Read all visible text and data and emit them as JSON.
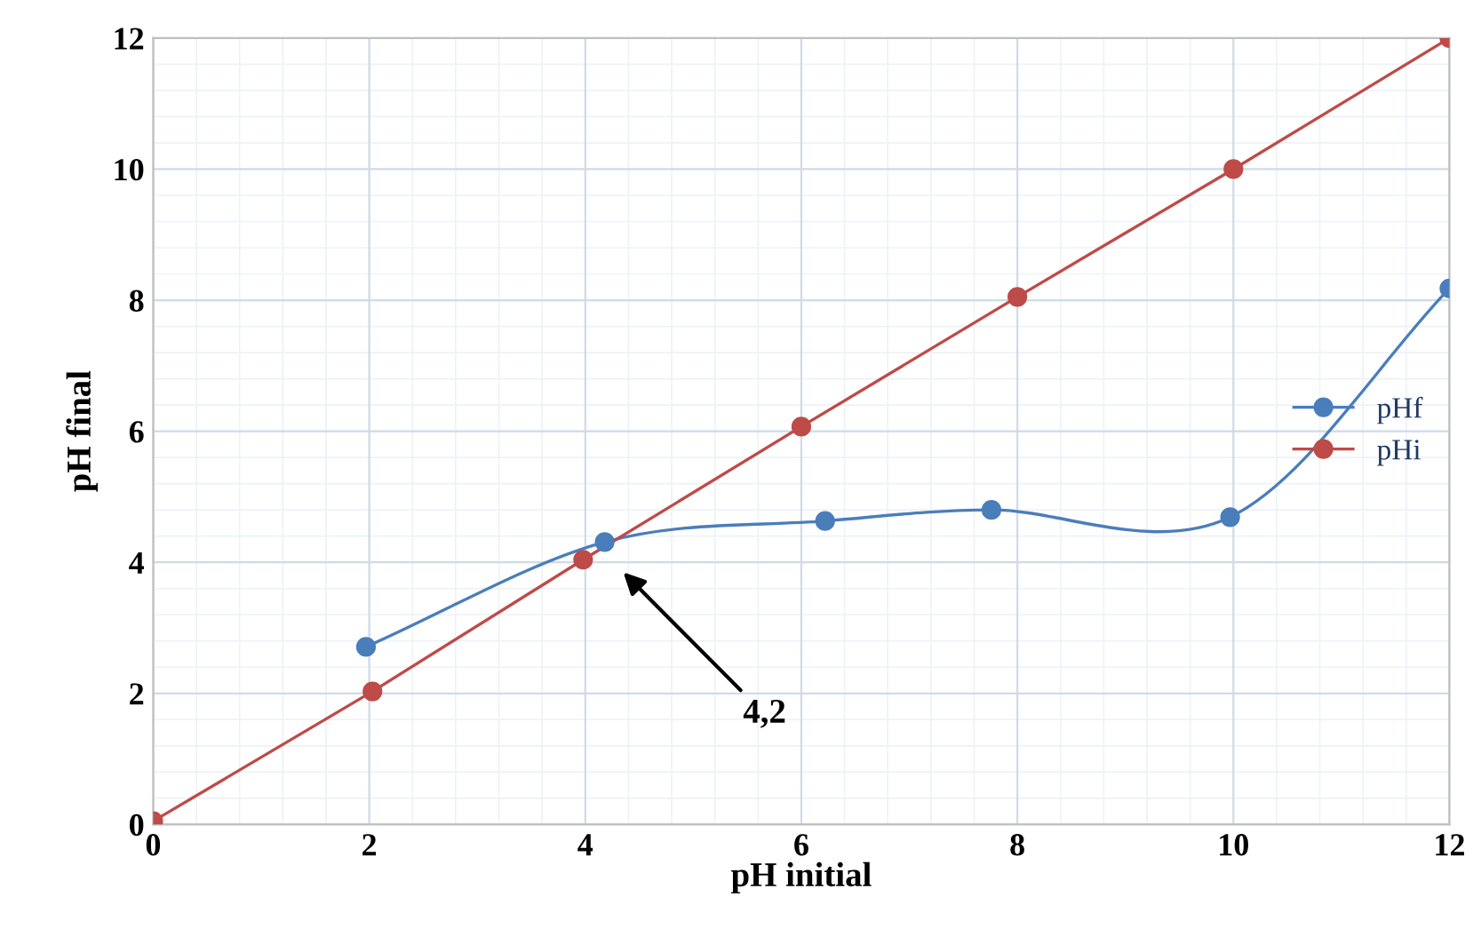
{
  "chart_data": {
    "type": "line",
    "xlabel": "pH initial",
    "ylabel": "pH final",
    "xlim": [
      0,
      12
    ],
    "ylim": [
      0,
      12
    ],
    "xticks": [
      0,
      2,
      4,
      6,
      8,
      10,
      12
    ],
    "yticks": [
      0,
      2,
      4,
      6,
      8,
      10,
      12
    ],
    "grid": true,
    "legend": "center right",
    "marker": "circle",
    "line_style": "solid",
    "series": [
      {
        "name": "pHf",
        "color": "#4a7ebb",
        "x": [
          1.97,
          4.18,
          6.22,
          7.76,
          9.97,
          12
        ],
        "values": [
          2.71,
          4.31,
          4.63,
          4.8,
          4.69,
          8.18
        ]
      },
      {
        "name": "pHi",
        "color": "#be4b48",
        "x": [
          0,
          2.03,
          3.98,
          6,
          8,
          10,
          12
        ],
        "values": [
          0.05,
          2.03,
          4.04,
          6.07,
          8.05,
          10,
          12
        ]
      }
    ],
    "annotations": [
      "4,2"
    ]
  }
}
